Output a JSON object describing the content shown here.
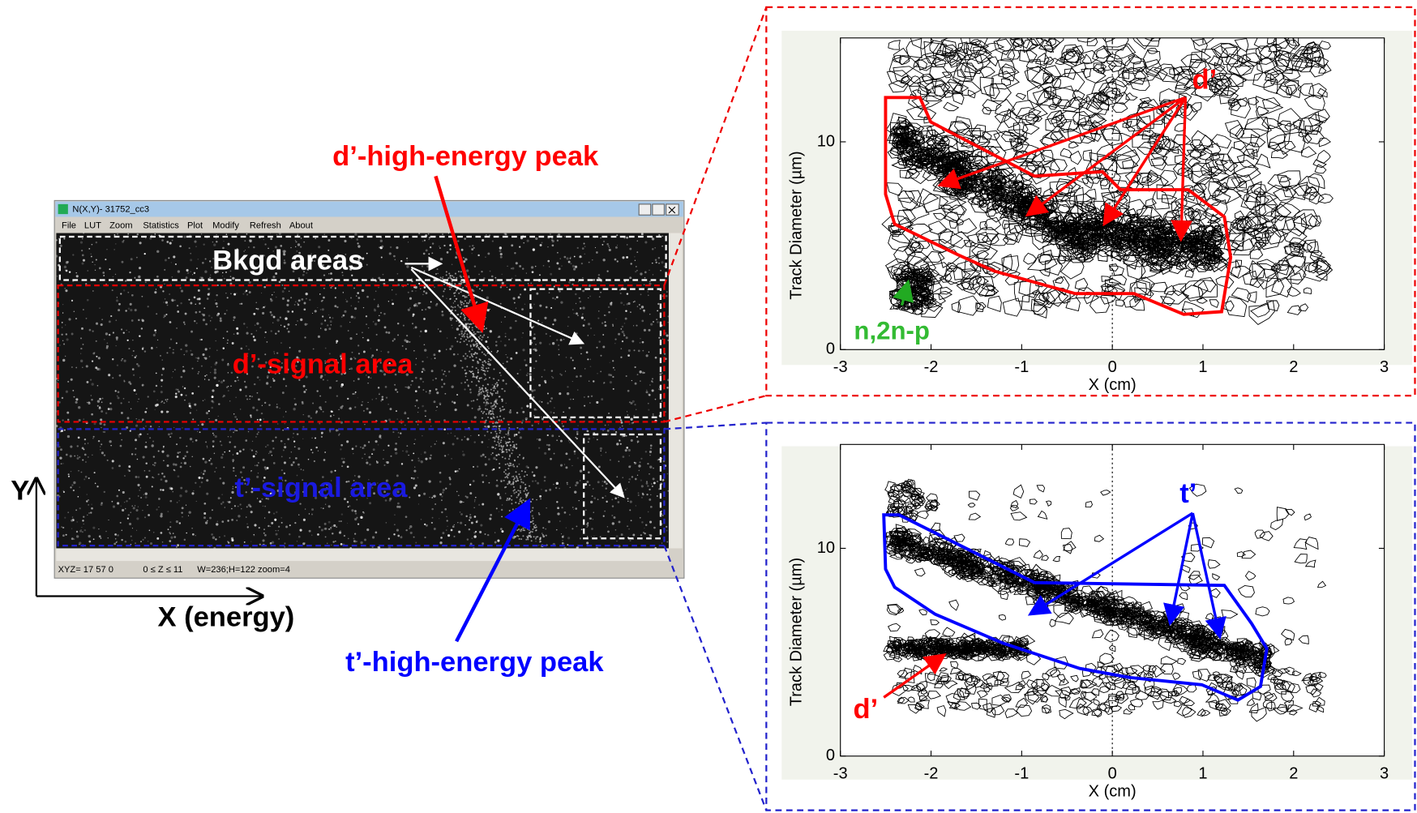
{
  "window": {
    "title": "N(X,Y)- 31752_cc3",
    "menu": [
      "File",
      "LUT",
      "Zoom",
      "Statistics",
      "Plot",
      "Modify",
      "Refresh",
      "About"
    ],
    "status": [
      "XYZ= 17 57 0",
      "0 ≤ Z ≤ 11",
      "W=236;H=122 zoom=4"
    ]
  },
  "annotations": {
    "d_peak": "d’-high-energy peak",
    "t_peak": "t’-high-energy peak",
    "bkgd": "Bkgd areas",
    "d_signal": "d’-signal area",
    "t_signal": "t’-signal area",
    "y_axis": "Y",
    "x_axis": "X (energy)"
  },
  "chart_data": [
    {
      "type": "contour",
      "xlabel": "X (cm)",
      "ylabel": "Track Diameter (µm)",
      "xlim": [
        -3,
        3
      ],
      "ylim": [
        0,
        15
      ],
      "xticks": [
        -3,
        -2,
        -1,
        0,
        1,
        2,
        3
      ],
      "yticks": [
        0,
        10
      ],
      "labels": [
        "d’",
        "n,2n-p"
      ]
    },
    {
      "type": "contour",
      "xlabel": "X (cm)",
      "ylabel": "Track Diameter (µm)",
      "xlim": [
        -3,
        3
      ],
      "ylim": [
        0,
        15
      ],
      "xticks": [
        -3,
        -2,
        -1,
        0,
        1,
        2,
        3
      ],
      "yticks": [
        0,
        10
      ],
      "labels": [
        "t’",
        "d’"
      ]
    }
  ]
}
